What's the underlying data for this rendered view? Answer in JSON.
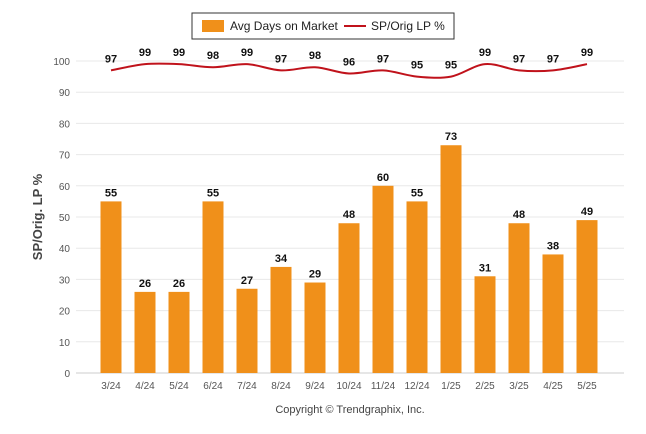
{
  "chart_data": {
    "type": "bar",
    "categories": [
      "3/24",
      "4/24",
      "5/24",
      "6/24",
      "7/24",
      "8/24",
      "9/24",
      "10/24",
      "11/24",
      "12/24",
      "1/25",
      "2/25",
      "3/25",
      "4/25",
      "5/25"
    ],
    "series": [
      {
        "name": "Avg Days on Market",
        "type": "bar",
        "color": "#f0901a",
        "values": [
          55,
          26,
          26,
          55,
          27,
          34,
          29,
          48,
          60,
          55,
          73,
          31,
          48,
          38,
          49
        ]
      },
      {
        "name": "SP/Orig LP %",
        "type": "line",
        "color": "#c0121b",
        "values": [
          97,
          99,
          99,
          98,
          99,
          97,
          98,
          96,
          97,
          95,
          95,
          99,
          97,
          97,
          99
        ]
      }
    ],
    "ylabel": "SP/Orig. LP %",
    "ylim": [
      0,
      100
    ],
    "yticks": [
      0,
      10,
      20,
      30,
      40,
      50,
      60,
      70,
      80,
      90,
      100
    ],
    "grid": true,
    "legend": "top-center"
  },
  "footer": {
    "copyright": "Copyright © Trendgraphix, Inc."
  }
}
